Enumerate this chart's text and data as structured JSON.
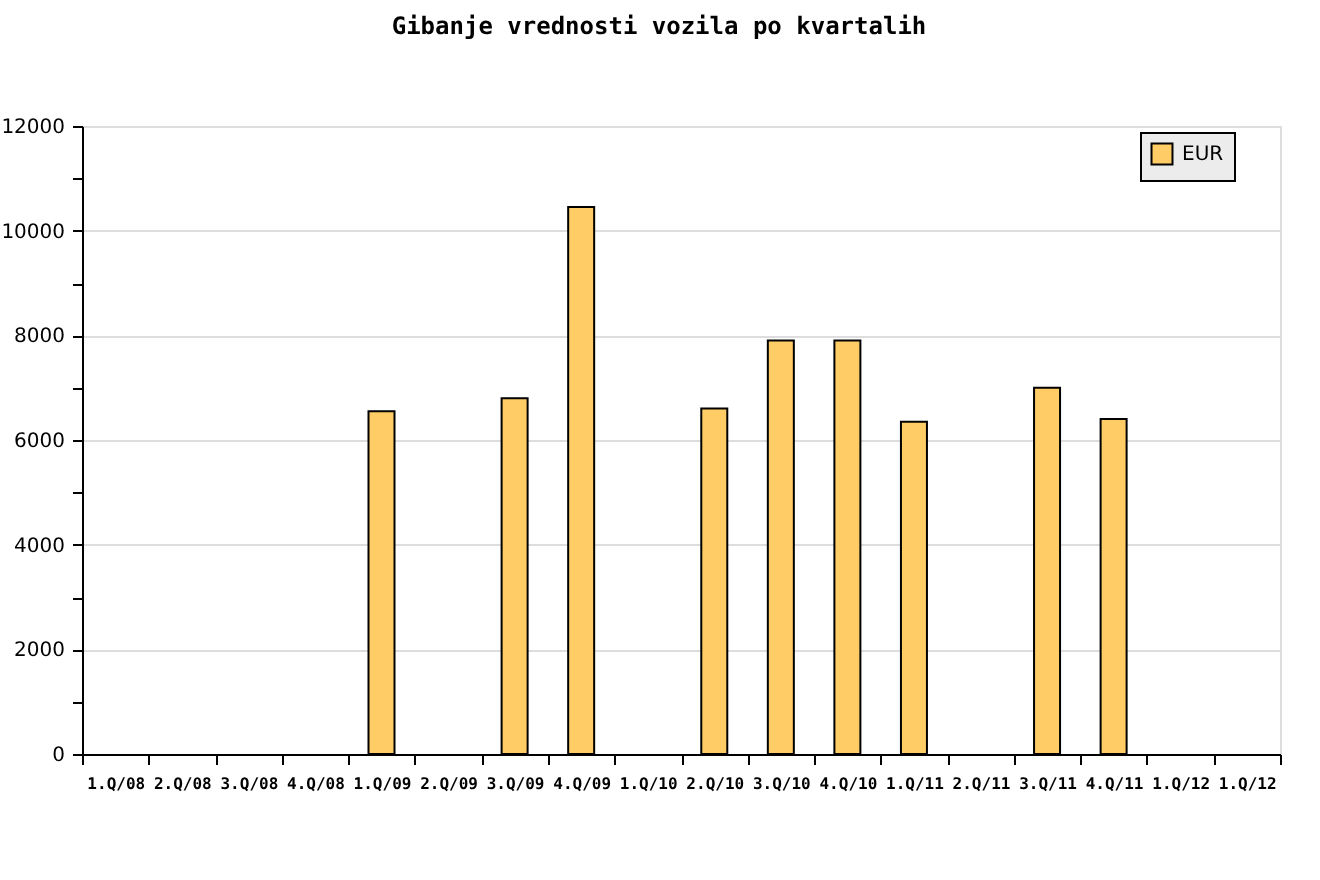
{
  "chart_data": {
    "type": "bar",
    "title": "Gibanje vrednosti vozila po kvartalih",
    "categories": [
      "1.Q/08",
      "2.Q/08",
      "3.Q/08",
      "4.Q/08",
      "1.Q/09",
      "2.Q/09",
      "3.Q/09",
      "4.Q/09",
      "1.Q/10",
      "2.Q/10",
      "3.Q/10",
      "4.Q/10",
      "1.Q/11",
      "2.Q/11",
      "3.Q/11",
      "4.Q/11",
      "1.Q/12",
      "1.Q/12"
    ],
    "series": [
      {
        "name": "EUR",
        "color": "#ffcc66",
        "values": [
          null,
          null,
          null,
          null,
          6550,
          null,
          6800,
          10450,
          null,
          6600,
          7900,
          7900,
          6350,
          null,
          7000,
          6400,
          null,
          null
        ]
      }
    ],
    "ylim": [
      0,
      12000
    ],
    "yticks": [
      0,
      {
        "value": 1000,
        "label": null
      },
      2000,
      {
        "value": 3000,
        "label": null
      },
      4000,
      {
        "value": 5000,
        "label": null
      },
      6000,
      {
        "value": 7000,
        "label": null
      },
      8000,
      {
        "value": 9000,
        "label": null
      },
      10000,
      {
        "value": 11000,
        "label": null
      },
      12000
    ],
    "grid": "y",
    "legend": "top right"
  }
}
